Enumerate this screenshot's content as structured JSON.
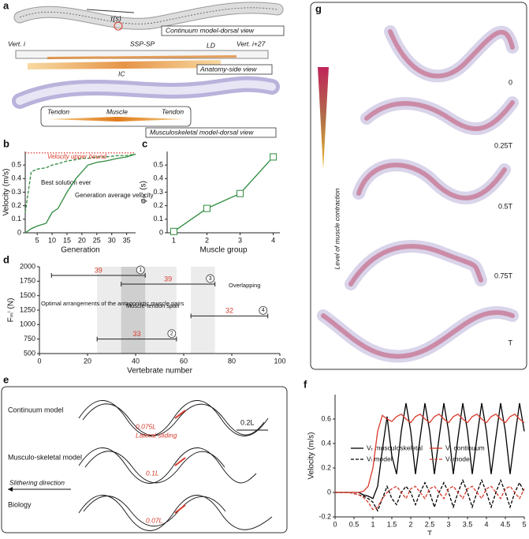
{
  "figure": {
    "panel_labels": [
      "a",
      "b",
      "c",
      "d",
      "e",
      "f",
      "g"
    ],
    "a": {
      "tau": "τ(s)",
      "continuum_view": "Continuum model-dorsal view",
      "vert_i": "Vert. i",
      "ssp": "SSP-SP",
      "ld": "LD",
      "vert_i27": "Vert. i+27",
      "ic": "IC",
      "anatomy_view": "Anatomy-side view",
      "tendon_left": "Tendon",
      "muscle": "Muscle",
      "tendon_right": "Tendon",
      "musculo_view": "Musculoskeletal model-dorsal view"
    },
    "e": {
      "row1": "Continuum model",
      "row2": "Musculo-skeletal model",
      "row3": "Biology",
      "amp1": "0.075L",
      "sliding": "Lateral sliding",
      "amp2": "0.1L",
      "amp3": "0.07L",
      "scale": "0.2L",
      "direction": "Slithering direction"
    },
    "g": {
      "scale_label": "Level of muscle contraction",
      "phases": [
        "0",
        "0.25T",
        "0.5T",
        "0.75T",
        "T"
      ]
    }
  },
  "chart_data": [
    {
      "type": "line",
      "xlabel": "Generation",
      "ylabel": "Velocity (m/s)",
      "x": [
        1,
        3,
        5,
        8,
        10,
        12,
        15,
        18,
        20,
        22,
        25,
        28,
        32,
        35,
        38
      ],
      "series": [
        {
          "name": "Best solution ever",
          "color": "#2e8b3e",
          "style": "dashed",
          "values": [
            0.15,
            0.45,
            0.47,
            0.48,
            0.5,
            0.51,
            0.53,
            0.54,
            0.55,
            0.55,
            0.56,
            0.56,
            0.57,
            0.57,
            0.58
          ]
        },
        {
          "name": "Generation average velocity",
          "color": "#2e8b3e",
          "style": "solid",
          "values": [
            0,
            0.03,
            0.05,
            0.07,
            0.15,
            0.18,
            0.3,
            0.4,
            0.45,
            0.5,
            0.52,
            0.53,
            0.55,
            0.56,
            0.58
          ]
        },
        {
          "name": "Velocity upper bound",
          "color": "#d93a2b",
          "style": "dotted",
          "values": [
            0.59,
            0.59,
            0.59,
            0.59,
            0.59,
            0.59,
            0.59,
            0.59,
            0.59,
            0.59,
            0.59,
            0.59,
            0.59,
            0.59,
            0.59
          ]
        }
      ],
      "xlim": [
        1,
        38
      ],
      "xticks": [
        5,
        10,
        15,
        20,
        25,
        30,
        35
      ],
      "ylim": [
        0,
        0.6
      ],
      "yticks": [
        0,
        0.1,
        0.2,
        0.3,
        0.4,
        0.5
      ]
    },
    {
      "type": "line",
      "xlabel": "Muscle group",
      "ylabel": "φₘⁱ (s)",
      "x": [
        1,
        2,
        3,
        4
      ],
      "series": [
        {
          "color": "#2e8b3e",
          "style": "solid",
          "marker": "square",
          "values": [
            0.01,
            0.18,
            0.29,
            0.56
          ]
        }
      ],
      "xlim": [
        0.8,
        4.2
      ],
      "xticks": [
        1,
        2,
        3,
        4
      ],
      "ylim": [
        0,
        0.6
      ],
      "yticks": [
        0,
        0.1,
        0.2,
        0.3,
        0.4,
        0.5
      ]
    },
    {
      "type": "range",
      "xlabel": "Vertebrate number",
      "ylabel": "Fₘⁱ (N)",
      "segments": [
        {
          "label": "1",
          "start": 5,
          "end": 44,
          "y": 1850,
          "length": 39
        },
        {
          "label": "3",
          "start": 34,
          "end": 73,
          "y": 1700,
          "length": 39
        },
        {
          "label": "4",
          "start": 63,
          "end": 95,
          "y": 1150,
          "length": 32
        },
        {
          "label": "2",
          "start": 24,
          "end": 57,
          "y": 750,
          "length": 33
        }
      ],
      "bands": [
        {
          "x0": 24,
          "x1": 57,
          "color": "#ececec"
        },
        {
          "x0": 34,
          "x1": 44,
          "color": "#cfcfcf"
        },
        {
          "x0": 63,
          "x1": 73,
          "color": "#ececec"
        }
      ],
      "annotations": [
        "Optimal arrangements of the antagonistic muscle pairs",
        "Muscle-tendon span",
        "Overlapping"
      ],
      "xlim": [
        0,
        100
      ],
      "xticks": [
        0,
        20,
        40,
        60,
        80,
        100
      ],
      "ylim": [
        500,
        2000
      ],
      "yticks": [
        500,
        750,
        1000,
        1250,
        1500,
        1750,
        2000
      ]
    },
    {
      "type": "line",
      "xlabel": "T",
      "ylabel": "Velocity (m/s)",
      "x": [
        0,
        0.125,
        0.25,
        0.375,
        0.5,
        0.625,
        0.75,
        0.875,
        1,
        1.125,
        1.25,
        1.375,
        1.5,
        1.625,
        1.75,
        1.875,
        2,
        2.125,
        2.25,
        2.375,
        2.5,
        2.625,
        2.75,
        2.875,
        3,
        3.125,
        3.25,
        3.375,
        3.5,
        3.625,
        3.75,
        3.875,
        4,
        4.125,
        4.25,
        4.375,
        4.5,
        4.625,
        4.75,
        4.875,
        5
      ],
      "series": [
        {
          "name": "Vₜ musculoskeletal",
          "color": "#000000",
          "style": "solid",
          "values": [
            0,
            0,
            0,
            0,
            0,
            0,
            -0.02,
            -0.03,
            -0.05,
            0.05,
            0.35,
            0.62,
            0.3,
            0.15,
            0.5,
            0.73,
            0.5,
            0.15,
            0.45,
            0.73,
            0.5,
            0.15,
            0.45,
            0.73,
            0.5,
            0.15,
            0.45,
            0.73,
            0.5,
            0.15,
            0.45,
            0.73,
            0.5,
            0.15,
            0.45,
            0.73,
            0.5,
            0.15,
            0.45,
            0.73,
            0.5
          ]
        },
        {
          "name": "Vₜ continuum",
          "color": "#d93a2b",
          "style": "solid",
          "values": [
            0,
            0,
            0,
            0,
            0,
            0,
            0.01,
            0.05,
            0.2,
            0.5,
            0.63,
            0.6,
            0.58,
            0.62,
            0.64,
            0.6,
            0.57,
            0.62,
            0.64,
            0.6,
            0.57,
            0.62,
            0.64,
            0.6,
            0.57,
            0.62,
            0.64,
            0.6,
            0.57,
            0.62,
            0.64,
            0.6,
            0.57,
            0.62,
            0.64,
            0.6,
            0.57,
            0.62,
            0.64,
            0.6,
            0.57
          ]
        },
        {
          "name": "Vₗ model",
          "color": "#000000",
          "style": "dashed",
          "values": [
            0,
            0,
            0,
            0,
            -0.01,
            -0.02,
            -0.03,
            -0.05,
            -0.08,
            -0.15,
            -0.05,
            0.05,
            -0.05,
            -0.1,
            0,
            0.05,
            0,
            -0.1,
            0,
            0.08,
            0,
            -0.12,
            0,
            0.08,
            0,
            -0.12,
            0,
            0.1,
            0,
            -0.12,
            0,
            0.1,
            0,
            -0.12,
            0,
            0.1,
            0,
            -0.12,
            0,
            0.08,
            0
          ]
        },
        {
          "name": "Vₗ model",
          "color": "#d93a2b",
          "style": "dashed",
          "values": [
            0,
            0,
            0,
            0,
            -0.01,
            -0.02,
            -0.04,
            -0.08,
            -0.14,
            -0.12,
            -0.05,
            0,
            0.03,
            0.05,
            0,
            -0.05,
            0.03,
            0.05,
            0,
            -0.05,
            0.03,
            0.05,
            0,
            -0.05,
            0.03,
            0.05,
            0,
            -0.05,
            0.03,
            0.05,
            0,
            -0.05,
            0.03,
            0.05,
            0,
            -0.05,
            0.03,
            0.05,
            0,
            -0.05,
            0.03
          ]
        }
      ],
      "xlim": [
        0,
        5
      ],
      "xticks": [
        0,
        0.5,
        1,
        1.5,
        2,
        2.5,
        3,
        3.5,
        4,
        4.5,
        5
      ],
      "ylim": [
        -0.2,
        0.8
      ],
      "yticks": [
        -0.2,
        0,
        0.2,
        0.4,
        0.6
      ]
    }
  ]
}
